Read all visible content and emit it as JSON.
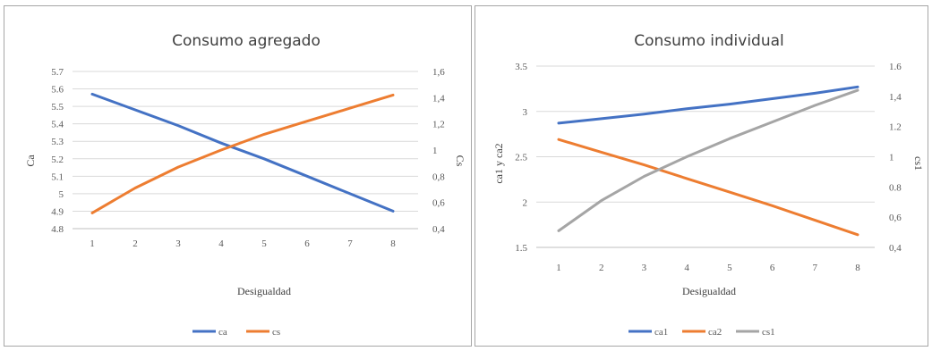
{
  "chart_data": [
    {
      "type": "line",
      "title": "Consumo agregado",
      "xlabel": "Desigualdad",
      "ylabel": "Ca",
      "y2label": "Cs",
      "x": [
        1,
        2,
        3,
        4,
        5,
        6,
        7,
        8
      ],
      "ylim": [
        4.8,
        5.7
      ],
      "y_ticks": [
        "5.7",
        "5.6",
        "5.5",
        "5.4",
        "5.3",
        "5.2",
        "5.1",
        "5",
        "4.9",
        "4.8"
      ],
      "y2lim": [
        0.4,
        1.6
      ],
      "y2_ticks": [
        "1,6",
        "1,4",
        "1,2",
        "1",
        "0,8",
        "0,6",
        "0,4"
      ],
      "grid": true,
      "legend_position": "bottom",
      "series": [
        {
          "name": "ca",
          "axis": "left",
          "color": "#4472c4",
          "values": [
            5.57,
            5.48,
            5.39,
            5.29,
            5.2,
            5.1,
            5.0,
            4.9
          ]
        },
        {
          "name": "cs",
          "axis": "right",
          "color": "#ed7d31",
          "values": [
            0.52,
            0.71,
            0.87,
            1.0,
            1.12,
            1.22,
            1.32,
            1.42
          ]
        }
      ]
    },
    {
      "type": "line",
      "title": "Consumo individual",
      "xlabel": "Desigualdad",
      "ylabel": "ca1 y ca2",
      "y2label": "cs1",
      "x": [
        1,
        2,
        3,
        4,
        5,
        6,
        7,
        8
      ],
      "ylim": [
        1.5,
        3.5
      ],
      "y_ticks": [
        "3.5",
        "3",
        "2.5",
        "2",
        "1.5"
      ],
      "y2lim": [
        0.4,
        1.6
      ],
      "y2_ticks": [
        "1.6",
        "1,4",
        "1.2",
        "1",
        "0.8",
        "0,6",
        "0,4"
      ],
      "grid": true,
      "legend_position": "bottom",
      "series": [
        {
          "name": "ca1",
          "axis": "left",
          "color": "#4472c4",
          "values": [
            2.87,
            2.92,
            2.97,
            3.03,
            3.08,
            3.14,
            3.2,
            3.27
          ]
        },
        {
          "name": "ca2",
          "axis": "left",
          "color": "#ed7d31",
          "values": [
            2.69,
            2.55,
            2.41,
            2.26,
            2.11,
            1.96,
            1.8,
            1.64
          ]
        },
        {
          "name": "cs1",
          "axis": "right",
          "color": "#a5a5a5",
          "values": [
            0.51,
            0.71,
            0.87,
            1.0,
            1.12,
            1.23,
            1.34,
            1.44
          ]
        }
      ]
    }
  ]
}
